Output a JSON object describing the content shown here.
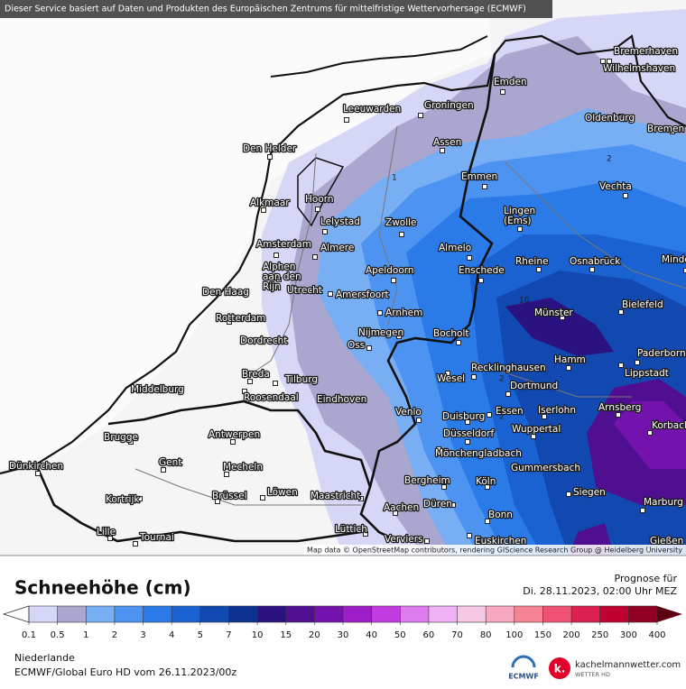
{
  "header": {
    "service_note": "Dieser Service basiert auf Daten und Produkten des Europäischen Zentrums für mittelfristige Wettervorhersage (ECMWF)"
  },
  "map": {
    "attribution": "Map data © OpenStreetMap contributors, rendering GIScience Research Group @ Heidelberg University",
    "cities": [
      "Bremerhaven",
      "Wilhelmshaven",
      "Emden",
      "Groningen",
      "Leeuwarden",
      "Oldenburg",
      "Bremen",
      "Den Helder",
      "Assen",
      "Emmen",
      "Vechta",
      "Alkmaar",
      "Hoorn",
      "Lelystad",
      "Zwolle",
      [
        "Lingen",
        "(Ems)"
      ],
      "Amsterdam",
      "Almere",
      "Almelo",
      "Rheine",
      "Osnabrück",
      "Minden",
      "Apeldoorn",
      "Enschede",
      [
        "Alphen",
        "aan den",
        "Rijn"
      ],
      "Utrecht",
      "Amersfoort",
      "Den Haag",
      "Bielefeld",
      "Arnhem",
      "Münster",
      "Rotterdam",
      "Nijmegen",
      "Bocholt",
      "Dordrecht",
      "Oss",
      "Paderborn",
      "Hamm",
      "Lippstadt",
      "Recklinghausen",
      "Breda",
      "Tilburg",
      "Wesel",
      "Middelburg",
      "Dortmund",
      "Roosendaal",
      "Eindhoven",
      "Arnsberg",
      "Iserlohn",
      "Essen",
      "Venlo",
      "Duisburg",
      "Korbach",
      "Wuppertal",
      "Brugge",
      "Antwerpen",
      "Düsseldorf",
      "Mönchengladbach",
      "Dünkirchen",
      "Gent",
      "Mecheln",
      "Gummersbach",
      "Kortrijk",
      "Bergheim",
      "Köln",
      "Brüssel",
      "Löwen",
      "Maastricht",
      "Siegen",
      "Marburg",
      "Düren",
      "Aachen",
      "Bonn",
      "Lille",
      "Tournai",
      "Lüttich",
      "Verviers",
      "Euskirchen",
      "Gießen"
    ],
    "contour_labels": [
      "2",
      "1",
      "10",
      "2",
      "2"
    ]
  },
  "legend": {
    "title": "Schneehöhe (cm)",
    "forecast_label": "Prognose für",
    "forecast_time": "Di. 28.11.2023, 02:00 Uhr MEZ",
    "ticks": [
      0.1,
      0.5,
      1,
      2,
      3,
      4,
      5,
      7,
      10,
      15,
      20,
      30,
      40,
      50,
      60,
      70,
      80,
      100,
      150,
      200,
      250,
      300,
      400
    ],
    "colors": [
      "#d6d6f6",
      "#a9a6cf",
      "#78aef4",
      "#4d94f2",
      "#2a7ae8",
      "#1a62d2",
      "#1249b0",
      "#0b3290",
      "#2a1381",
      "#4f0f90",
      "#7412ad",
      "#9d1ec8",
      "#c23ce2",
      "#de7cef",
      "#efb0f4",
      "#f6c8e4",
      "#f7a8bf",
      "#f68493",
      "#ef5273",
      "#db1f4f",
      "#bf0230",
      "#910023",
      "#5c0012"
    ],
    "below_color": "#ffffff"
  },
  "footer": {
    "region": "Niederlande",
    "model": "ECMWF/Global Euro HD vom  26.11.2023/00z",
    "ecmwf_logo": "ECMWF",
    "brand": "kachelmannwetter.com",
    "brand_sub": "WETTER HD"
  }
}
